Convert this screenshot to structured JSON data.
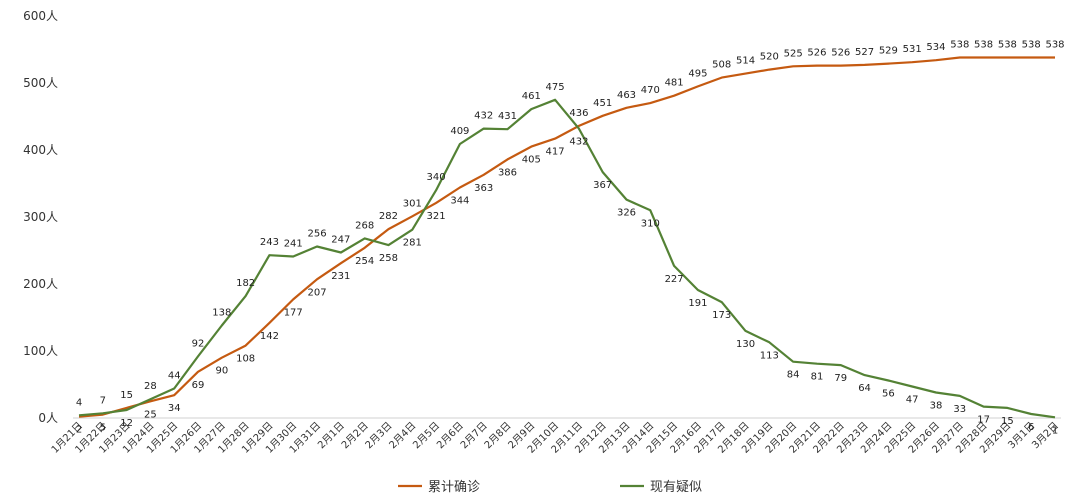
{
  "chart_data": {
    "type": "line",
    "categories": [
      "1月21日",
      "1月22日",
      "1月23日",
      "1月24日",
      "1月25日",
      "1月26日",
      "1月27日",
      "1月28日",
      "1月29日",
      "1月30日",
      "1月31日",
      "2月1日",
      "2月2日",
      "2月3日",
      "2月4日",
      "2月5日",
      "2月6日",
      "2月7日",
      "2月8日",
      "2月9日",
      "2月10日",
      "2月11日",
      "2月12日",
      "2月13日",
      "2月14日",
      "2月15日",
      "2月16日",
      "2月17日",
      "2月18日",
      "2月19日",
      "2月20日",
      "2月21日",
      "2月22日",
      "2月23日",
      "2月24日",
      "2月25日",
      "2月26日",
      "2月27日",
      "2月28日",
      "2月29日",
      "3月1日",
      "3月2日"
    ],
    "series": [
      {
        "name": "累计确诊",
        "color": "#c55a11",
        "values": [
          2,
          5,
          15,
          25,
          34,
          69,
          90,
          108,
          142,
          177,
          207,
          231,
          254,
          282,
          301,
          321,
          344,
          363,
          386,
          405,
          417,
          436,
          451,
          463,
          470,
          481,
          495,
          508,
          514,
          520,
          525,
          526,
          526,
          527,
          529,
          531,
          534,
          538,
          538,
          538,
          538,
          538
        ]
      },
      {
        "name": "现有疑似",
        "color": "#548235",
        "values": [
          4,
          7,
          12,
          28,
          44,
          92,
          138,
          182,
          243,
          241,
          256,
          247,
          268,
          258,
          281,
          340,
          409,
          432,
          431,
          461,
          475,
          432,
          367,
          326,
          310,
          227,
          191,
          173,
          130,
          113,
          84,
          81,
          79,
          64,
          56,
          47,
          38,
          33,
          17,
          15,
          6,
          1
        ]
      }
    ],
    "ylim": [
      0,
      600
    ],
    "yticks": [
      "0人",
      "100人",
      "200人",
      "300人",
      "400人",
      "500人",
      "600人"
    ],
    "grid": false,
    "legend_position": "bottom"
  }
}
